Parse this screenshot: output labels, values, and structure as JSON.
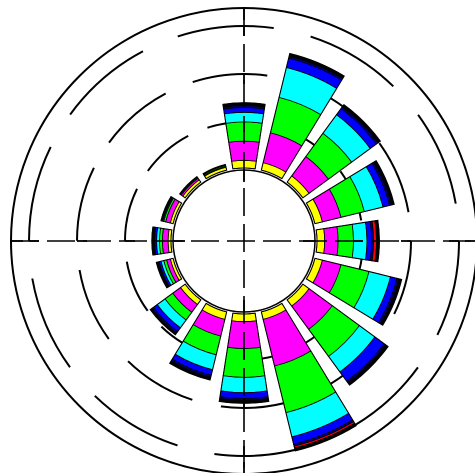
{
  "chart_data": {
    "type": "stacked-polar-bar",
    "title": "",
    "direction": "clockwise",
    "start_angle_deg": 0,
    "sector_count": 16,
    "series": [
      {
        "name": "",
        "color": "#ffff00"
      },
      {
        "name": "",
        "color": "#ff00ff"
      },
      {
        "name": "",
        "color": "#00ff00"
      },
      {
        "name": "",
        "color": "#00ffff"
      },
      {
        "name": "",
        "color": "#0000ff"
      },
      {
        "name": "",
        "color": "#000080"
      },
      {
        "name": "",
        "color": "#ff0000"
      },
      {
        "name": "",
        "color": "#000000"
      }
    ],
    "sectors": [
      {
        "direction_deg": 0,
        "values": [
          0.8,
          2.0,
          2.0,
          1.0,
          0.5,
          0.2,
          0.0,
          0.3
        ]
      },
      {
        "direction_deg": 22.5,
        "values": [
          0.8,
          3.2,
          3.8,
          3.2,
          1.0,
          0.2,
          0.0,
          0.3
        ]
      },
      {
        "direction_deg": 45,
        "values": [
          0.8,
          2.5,
          3.0,
          2.4,
          0.8,
          0.2,
          0.0,
          0.3
        ]
      },
      {
        "direction_deg": 67.5,
        "values": [
          0.8,
          2.0,
          2.5,
          2.0,
          0.7,
          0.2,
          0.0,
          0.3
        ]
      },
      {
        "direction_deg": 90,
        "values": [
          0.8,
          1.4,
          1.6,
          1.4,
          0.5,
          0.2,
          0.3,
          0.3
        ]
      },
      {
        "direction_deg": 112.5,
        "values": [
          0.8,
          2.0,
          3.0,
          2.3,
          0.7,
          0.2,
          0.0,
          0.3
        ]
      },
      {
        "direction_deg": 135,
        "values": [
          0.8,
          3.0,
          3.5,
          2.0,
          1.2,
          0.2,
          0.0,
          0.3
        ]
      },
      {
        "direction_deg": 157.5,
        "values": [
          0.8,
          5.0,
          5.0,
          2.6,
          0.8,
          0.2,
          0.2,
          0.3
        ]
      },
      {
        "direction_deg": 180,
        "values": [
          0.8,
          2.8,
          3.0,
          1.6,
          0.6,
          0.2,
          0.0,
          0.3
        ]
      },
      {
        "direction_deg": 202.5,
        "values": [
          0.8,
          1.8,
          2.0,
          1.6,
          0.6,
          0.2,
          0.0,
          0.3
        ]
      },
      {
        "direction_deg": 225,
        "values": [
          0.6,
          1.0,
          1.0,
          1.0,
          0.5,
          0.2,
          0.0,
          0.2
        ]
      },
      {
        "direction_deg": 247.5,
        "values": [
          0.3,
          0.4,
          0.3,
          0.3,
          0.2,
          0.1,
          0.0,
          0.2
        ]
      },
      {
        "direction_deg": 270,
        "values": [
          0.3,
          0.6,
          0.3,
          0.3,
          0.2,
          0.1,
          0.0,
          0.2
        ]
      },
      {
        "direction_deg": 292.5,
        "values": [
          0.3,
          0.5,
          0.2,
          0.1,
          0.1,
          0.0,
          0.0,
          0.1
        ]
      },
      {
        "direction_deg": 315,
        "values": [
          0.3,
          0.2,
          0.1,
          0.0,
          0.0,
          0.0,
          0.0,
          0.1
        ]
      },
      {
        "direction_deg": 337.5,
        "values": [
          0.3,
          0.1,
          0.1,
          0.0,
          0.0,
          0.0,
          0.0,
          0.1
        ]
      }
    ],
    "rings": {
      "values": [
        5,
        10,
        15
      ],
      "style": "dashed"
    },
    "axes": {
      "cross": true,
      "ticks_at_rings": true
    },
    "grid": true,
    "legend": "none"
  }
}
